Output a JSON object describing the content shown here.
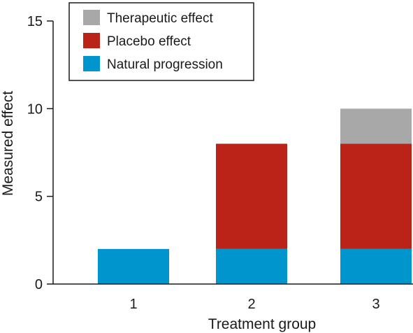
{
  "chart_data": {
    "type": "bar",
    "stacked": true,
    "categories": [
      "1",
      "2",
      "3"
    ],
    "series": [
      {
        "name": "Natural progression",
        "values": [
          2,
          2,
          2
        ],
        "color": "#0095cd"
      },
      {
        "name": "Placebo effect",
        "values": [
          0,
          6,
          6
        ],
        "color": "#bb2318"
      },
      {
        "name": "Therapeutic effect",
        "values": [
          0,
          0,
          2
        ],
        "color": "#a8a8a8"
      }
    ],
    "legend_order": [
      "Therapeutic effect",
      "Placebo effect",
      "Natural progression"
    ],
    "legend_position": "top-left",
    "xlabel": "Treatment group",
    "ylabel": "Measured effect",
    "ylim": [
      0,
      15
    ],
    "yticks": [
      0,
      5,
      10,
      15
    ],
    "grid": false
  }
}
